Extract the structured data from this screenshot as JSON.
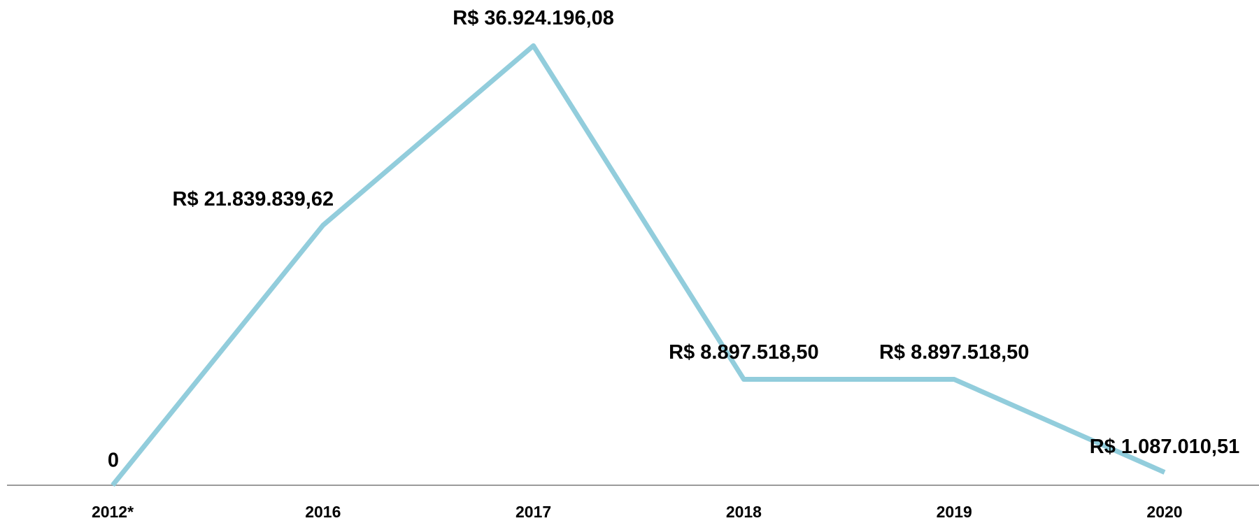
{
  "chart_data": {
    "type": "line",
    "categories": [
      "2012*",
      "2016",
      "2017",
      "2018",
      "2019",
      "2020"
    ],
    "series": [
      {
        "color": "#92cddc",
        "values": [
          0,
          21839839.62,
          36924196.08,
          8897518.5,
          8897518.5,
          1087010.51
        ],
        "value_labels": [
          "0",
          "R$ 21.839.839,62",
          "R$ 36.924.196,08",
          "R$ 8.897.518,50",
          "R$ 8.897.518,50",
          "R$ 1.087.010,51"
        ]
      }
    ],
    "ylim": [
      0,
      40000000
    ]
  }
}
